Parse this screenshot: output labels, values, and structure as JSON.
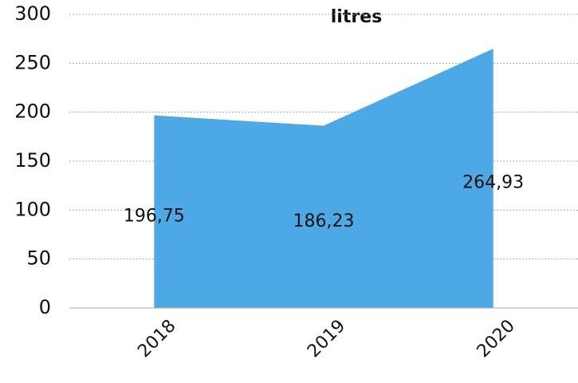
{
  "chart_data": {
    "type": "area",
    "title": "litres",
    "categories": [
      "2018",
      "2019",
      "2020"
    ],
    "values": [
      196.75,
      186.23,
      264.93
    ],
    "value_labels": [
      "196,75",
      "186,23",
      "264,93"
    ],
    "color": "#4da9e6",
    "ylim": [
      0,
      300
    ],
    "yticks": [
      0,
      50,
      100,
      150,
      200,
      250,
      300
    ],
    "grid": true
  }
}
